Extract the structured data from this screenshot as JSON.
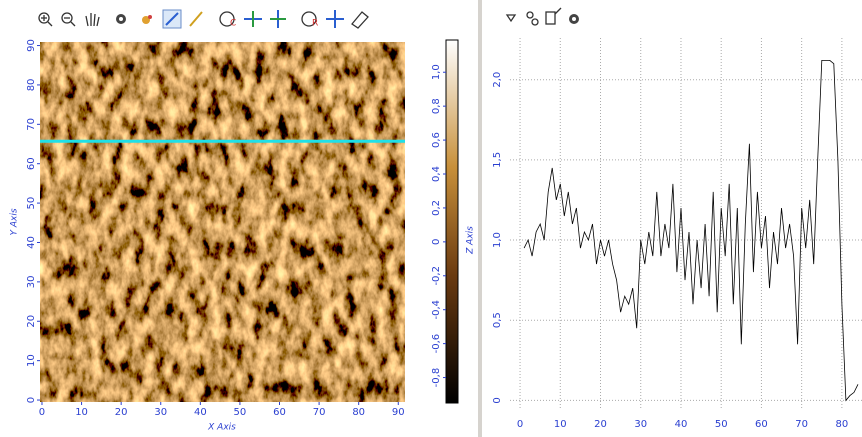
{
  "chart_data": [
    {
      "type": "image",
      "x_label": "X Axis",
      "y_label": "Y Axis",
      "z_label": "Z Axis",
      "xlim": [
        -0.5,
        91.7
      ],
      "ylim": [
        -0.5,
        90.9
      ],
      "xticks": [
        0,
        10,
        20,
        30,
        40,
        50,
        60,
        70,
        80,
        90
      ],
      "yticks": [
        0,
        10,
        20,
        30,
        40,
        50,
        60,
        70,
        80,
        90
      ],
      "zlim": [
        -0.95,
        1.19
      ],
      "zticks": [
        {
          "value": -0.8,
          "label": "-0,8"
        },
        {
          "value": -0.6,
          "label": "-0,6"
        },
        {
          "value": -0.4,
          "label": "-0,4"
        },
        {
          "value": -0.2,
          "label": "-0,2"
        },
        0,
        {
          "value": 0.2,
          "label": "0,2"
        },
        {
          "value": 0.4,
          "label": "0,4"
        },
        {
          "value": 0.6,
          "label": "0,6"
        },
        {
          "value": 0.8,
          "label": "0,8"
        },
        {
          "value": 1.0,
          "label": "1,0"
        }
      ],
      "line_y": 65.7,
      "line_color": "#1fe0e8"
    },
    {
      "type": "line",
      "color": "#000000",
      "grid": true,
      "xlim": [
        -2.5,
        85
      ],
      "ylim": [
        -0.06,
        2.26
      ],
      "xticks": [
        0,
        10,
        20,
        30,
        40,
        50,
        60,
        70,
        80
      ],
      "yticks": [
        0,
        {
          "value": 0.5,
          "label": "0,5"
        },
        {
          "value": 1.0,
          "label": "1,0"
        },
        {
          "value": 1.5,
          "label": "1,5"
        },
        {
          "value": 2.0,
          "label": "2,0"
        }
      ],
      "x": [
        1,
        2,
        3,
        4,
        5,
        6,
        7,
        8,
        9,
        10,
        11,
        12,
        13,
        14,
        15,
        16,
        17,
        18,
        19,
        20,
        21,
        22,
        23,
        24,
        25,
        26,
        27,
        28,
        29,
        30,
        31,
        32,
        33,
        34,
        35,
        36,
        37,
        38,
        39,
        40,
        41,
        42,
        43,
        44,
        45,
        46,
        47,
        48,
        49,
        50,
        51,
        52,
        53,
        54,
        55,
        56,
        57,
        58,
        59,
        60,
        61,
        62,
        63,
        64,
        65,
        66,
        67,
        68,
        69,
        70,
        71,
        72,
        73,
        74,
        75,
        76,
        77,
        78,
        79,
        80,
        81,
        82,
        83,
        84
      ],
      "values": [
        0.95,
        1.0,
        0.9,
        1.05,
        1.1,
        1.0,
        1.3,
        1.45,
        1.25,
        1.35,
        1.15,
        1.3,
        1.1,
        1.2,
        0.95,
        1.05,
        1.0,
        1.1,
        0.85,
        1.0,
        0.9,
        1.0,
        0.85,
        0.75,
        0.55,
        0.65,
        0.6,
        0.7,
        0.45,
        1.0,
        0.85,
        1.05,
        0.9,
        1.3,
        0.9,
        1.1,
        0.95,
        1.35,
        0.8,
        1.2,
        0.75,
        1.05,
        0.6,
        1.0,
        0.7,
        1.1,
        0.65,
        1.3,
        0.55,
        1.2,
        0.9,
        1.35,
        0.6,
        1.2,
        0.35,
        1.1,
        1.6,
        0.8,
        1.3,
        0.95,
        1.15,
        0.7,
        1.05,
        0.85,
        1.2,
        0.95,
        1.1,
        0.9,
        0.35,
        1.2,
        0.95,
        1.25,
        0.85,
        1.5,
        2.12,
        2.12,
        2.12,
        2.1,
        1.5,
        0.6,
        0.0,
        0.03,
        0.05,
        0.1
      ]
    }
  ]
}
